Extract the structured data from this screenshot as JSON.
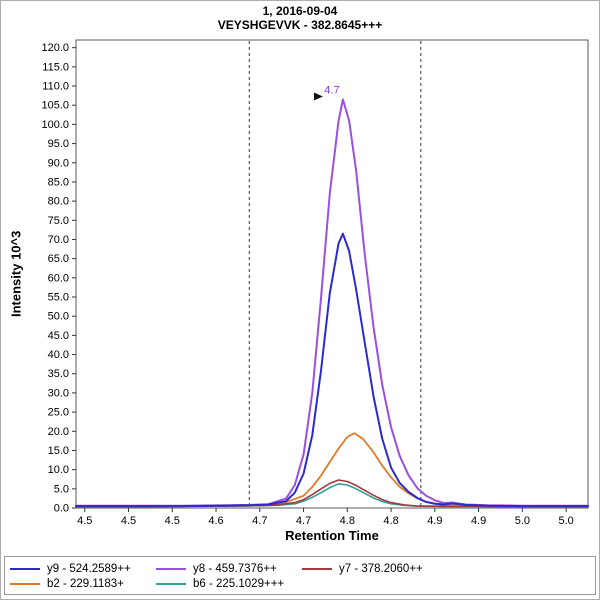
{
  "header": {
    "title_line1": "1, 2016-09-04",
    "title_line2": "VEYSHGEVVK - 382.8645+++"
  },
  "chart_data": {
    "type": "line",
    "title": "1, 2016-09-04",
    "subtitle": "VEYSHGEVVK - 382.8645+++",
    "xlabel": "Retention Time",
    "ylabel": "Intensity 10^3",
    "xlim": [
      4.44,
      5.025
    ],
    "ylim": [
      0,
      122
    ],
    "grid": false,
    "legend_position": "bottom",
    "x_ticks": [
      {
        "value": 4.45,
        "label": "4.5"
      },
      {
        "value": 4.5,
        "label": "4.5"
      },
      {
        "value": 4.55,
        "label": "4.5"
      },
      {
        "value": 4.6,
        "label": "4.6"
      },
      {
        "value": 4.65,
        "label": "4.7"
      },
      {
        "value": 4.7,
        "label": "4.7"
      },
      {
        "value": 4.75,
        "label": "4.8"
      },
      {
        "value": 4.8,
        "label": "4.8"
      },
      {
        "value": 4.85,
        "label": "4.9"
      },
      {
        "value": 4.9,
        "label": "4.9"
      },
      {
        "value": 4.95,
        "label": "5.0"
      },
      {
        "value": 5.0,
        "label": "5.0"
      }
    ],
    "y_ticks": [
      {
        "value": 0,
        "label": "0.0"
      },
      {
        "value": 5,
        "label": "5.0"
      },
      {
        "value": 10,
        "label": "10.0"
      },
      {
        "value": 15,
        "label": "15.0"
      },
      {
        "value": 20,
        "label": "20.0"
      },
      {
        "value": 25,
        "label": "25.0"
      },
      {
        "value": 30,
        "label": "30.0"
      },
      {
        "value": 35,
        "label": "35.0"
      },
      {
        "value": 40,
        "label": "40.0"
      },
      {
        "value": 45,
        "label": "45.0"
      },
      {
        "value": 50,
        "label": "50.0"
      },
      {
        "value": 55,
        "label": "55.0"
      },
      {
        "value": 60,
        "label": "60.0"
      },
      {
        "value": 65,
        "label": "65.0"
      },
      {
        "value": 70,
        "label": "70.0"
      },
      {
        "value": 75,
        "label": "75.0"
      },
      {
        "value": 80,
        "label": "80.0"
      },
      {
        "value": 85,
        "label": "85.0"
      },
      {
        "value": 90,
        "label": "90.0"
      },
      {
        "value": 95,
        "label": "95.0"
      },
      {
        "value": 100,
        "label": "100.0"
      },
      {
        "value": 105,
        "label": "105.0"
      },
      {
        "value": 110,
        "label": "110.0"
      },
      {
        "value": 115,
        "label": "115.0"
      },
      {
        "value": 120,
        "label": "120.0"
      }
    ],
    "integration_boundaries": [
      4.638,
      4.834
    ],
    "peak_annotation": {
      "label": "4.7",
      "x": 4.745,
      "y": 106.5,
      "color": "#8a3fd1"
    },
    "series": [
      {
        "id": "y9",
        "name": "y9 - 524.2589++",
        "color": "#2a2ad0",
        "width": 2,
        "points": [
          [
            4.44,
            0.5
          ],
          [
            4.5,
            0.5
          ],
          [
            4.56,
            0.5
          ],
          [
            4.61,
            0.6
          ],
          [
            4.64,
            0.7
          ],
          [
            4.66,
            0.9
          ],
          [
            4.68,
            1.8
          ],
          [
            4.69,
            4
          ],
          [
            4.7,
            9
          ],
          [
            4.71,
            19
          ],
          [
            4.72,
            36
          ],
          [
            4.73,
            56
          ],
          [
            4.74,
            69
          ],
          [
            4.745,
            71.5
          ],
          [
            4.752,
            67
          ],
          [
            4.76,
            57
          ],
          [
            4.77,
            43
          ],
          [
            4.78,
            29
          ],
          [
            4.79,
            18
          ],
          [
            4.8,
            10.5
          ],
          [
            4.81,
            6.5
          ],
          [
            4.82,
            4.2
          ],
          [
            4.83,
            2.6
          ],
          [
            4.84,
            1.6
          ],
          [
            4.85,
            1.1
          ],
          [
            4.86,
            0.9
          ],
          [
            4.87,
            1.2
          ],
          [
            4.885,
            0.8
          ],
          [
            4.91,
            0.6
          ],
          [
            4.95,
            0.5
          ],
          [
            5.0,
            0.5
          ],
          [
            5.025,
            0.5
          ]
        ]
      },
      {
        "id": "y8",
        "name": "y8 - 459.7376++",
        "color": "#9b4fe0",
        "width": 2,
        "points": [
          [
            4.44,
            0.6
          ],
          [
            4.5,
            0.6
          ],
          [
            4.56,
            0.6
          ],
          [
            4.61,
            0.7
          ],
          [
            4.64,
            0.8
          ],
          [
            4.66,
            1.0
          ],
          [
            4.68,
            2.5
          ],
          [
            4.69,
            6
          ],
          [
            4.7,
            14
          ],
          [
            4.71,
            30
          ],
          [
            4.72,
            55
          ],
          [
            4.73,
            82
          ],
          [
            4.74,
            101
          ],
          [
            4.745,
            106.5
          ],
          [
            4.752,
            101
          ],
          [
            4.76,
            88
          ],
          [
            4.77,
            66
          ],
          [
            4.78,
            47
          ],
          [
            4.79,
            32
          ],
          [
            4.8,
            21
          ],
          [
            4.81,
            13.5
          ],
          [
            4.82,
            8.5
          ],
          [
            4.83,
            5.2
          ],
          [
            4.84,
            3.2
          ],
          [
            4.85,
            2.0
          ],
          [
            4.86,
            1.3
          ],
          [
            4.87,
            1.4
          ],
          [
            4.885,
            0.9
          ],
          [
            4.91,
            0.7
          ],
          [
            4.95,
            0.6
          ],
          [
            5.0,
            0.6
          ],
          [
            5.025,
            0.6
          ]
        ]
      },
      {
        "id": "y7",
        "name": "y7 - 378.2060++",
        "color": "#a63a3a",
        "width": 1.6,
        "points": [
          [
            4.44,
            0.4
          ],
          [
            4.52,
            0.4
          ],
          [
            4.6,
            0.5
          ],
          [
            4.65,
            0.6
          ],
          [
            4.67,
            0.8
          ],
          [
            4.69,
            1.4
          ],
          [
            4.7,
            2.2
          ],
          [
            4.71,
            3.5
          ],
          [
            4.72,
            5.0
          ],
          [
            4.73,
            6.4
          ],
          [
            4.74,
            7.3
          ],
          [
            4.75,
            6.9
          ],
          [
            4.76,
            5.9
          ],
          [
            4.77,
            4.6
          ],
          [
            4.78,
            3.3
          ],
          [
            4.79,
            2.2
          ],
          [
            4.8,
            1.4
          ],
          [
            4.815,
            0.8
          ],
          [
            4.83,
            0.5
          ],
          [
            4.86,
            0.4
          ],
          [
            4.9,
            0.4
          ],
          [
            4.95,
            0.4
          ],
          [
            5.0,
            0.4
          ],
          [
            5.025,
            0.4
          ]
        ]
      },
      {
        "id": "b2",
        "name": "b2 - 229.1183+",
        "color": "#e07a28",
        "width": 1.8,
        "points": [
          [
            4.44,
            0.4
          ],
          [
            4.52,
            0.4
          ],
          [
            4.6,
            0.5
          ],
          [
            4.64,
            0.6
          ],
          [
            4.66,
            0.8
          ],
          [
            4.68,
            1.5
          ],
          [
            4.7,
            3.2
          ],
          [
            4.71,
            5.5
          ],
          [
            4.72,
            8.5
          ],
          [
            4.73,
            12
          ],
          [
            4.74,
            15.5
          ],
          [
            4.75,
            18.5
          ],
          [
            4.758,
            19.5
          ],
          [
            4.768,
            18
          ],
          [
            4.78,
            14.5
          ],
          [
            4.79,
            11
          ],
          [
            4.8,
            8
          ],
          [
            4.81,
            5.5
          ],
          [
            4.82,
            3.8
          ],
          [
            4.83,
            2.5
          ],
          [
            4.84,
            1.6
          ],
          [
            4.855,
            1.0
          ],
          [
            4.87,
            0.7
          ],
          [
            4.89,
            0.5
          ],
          [
            4.92,
            0.4
          ],
          [
            4.96,
            0.4
          ],
          [
            5.0,
            0.4
          ],
          [
            5.025,
            0.4
          ]
        ]
      },
      {
        "id": "b6",
        "name": "b6 - 225.1029+++",
        "color": "#2f9f9f",
        "width": 1.6,
        "points": [
          [
            4.44,
            0.5
          ],
          [
            4.52,
            0.5
          ],
          [
            4.6,
            0.5
          ],
          [
            4.65,
            0.6
          ],
          [
            4.67,
            0.7
          ],
          [
            4.69,
            1.1
          ],
          [
            4.7,
            1.8
          ],
          [
            4.71,
            2.8
          ],
          [
            4.72,
            4.0
          ],
          [
            4.73,
            5.3
          ],
          [
            4.74,
            6.3
          ],
          [
            4.75,
            6.0
          ],
          [
            4.76,
            5.0
          ],
          [
            4.77,
            3.8
          ],
          [
            4.78,
            2.6
          ],
          [
            4.79,
            1.7
          ],
          [
            4.8,
            1.1
          ],
          [
            4.815,
            0.7
          ],
          [
            4.83,
            0.5
          ],
          [
            4.86,
            0.5
          ],
          [
            4.9,
            0.5
          ],
          [
            4.95,
            0.5
          ],
          [
            5.0,
            0.5
          ],
          [
            5.025,
            0.5
          ]
        ]
      }
    ]
  }
}
